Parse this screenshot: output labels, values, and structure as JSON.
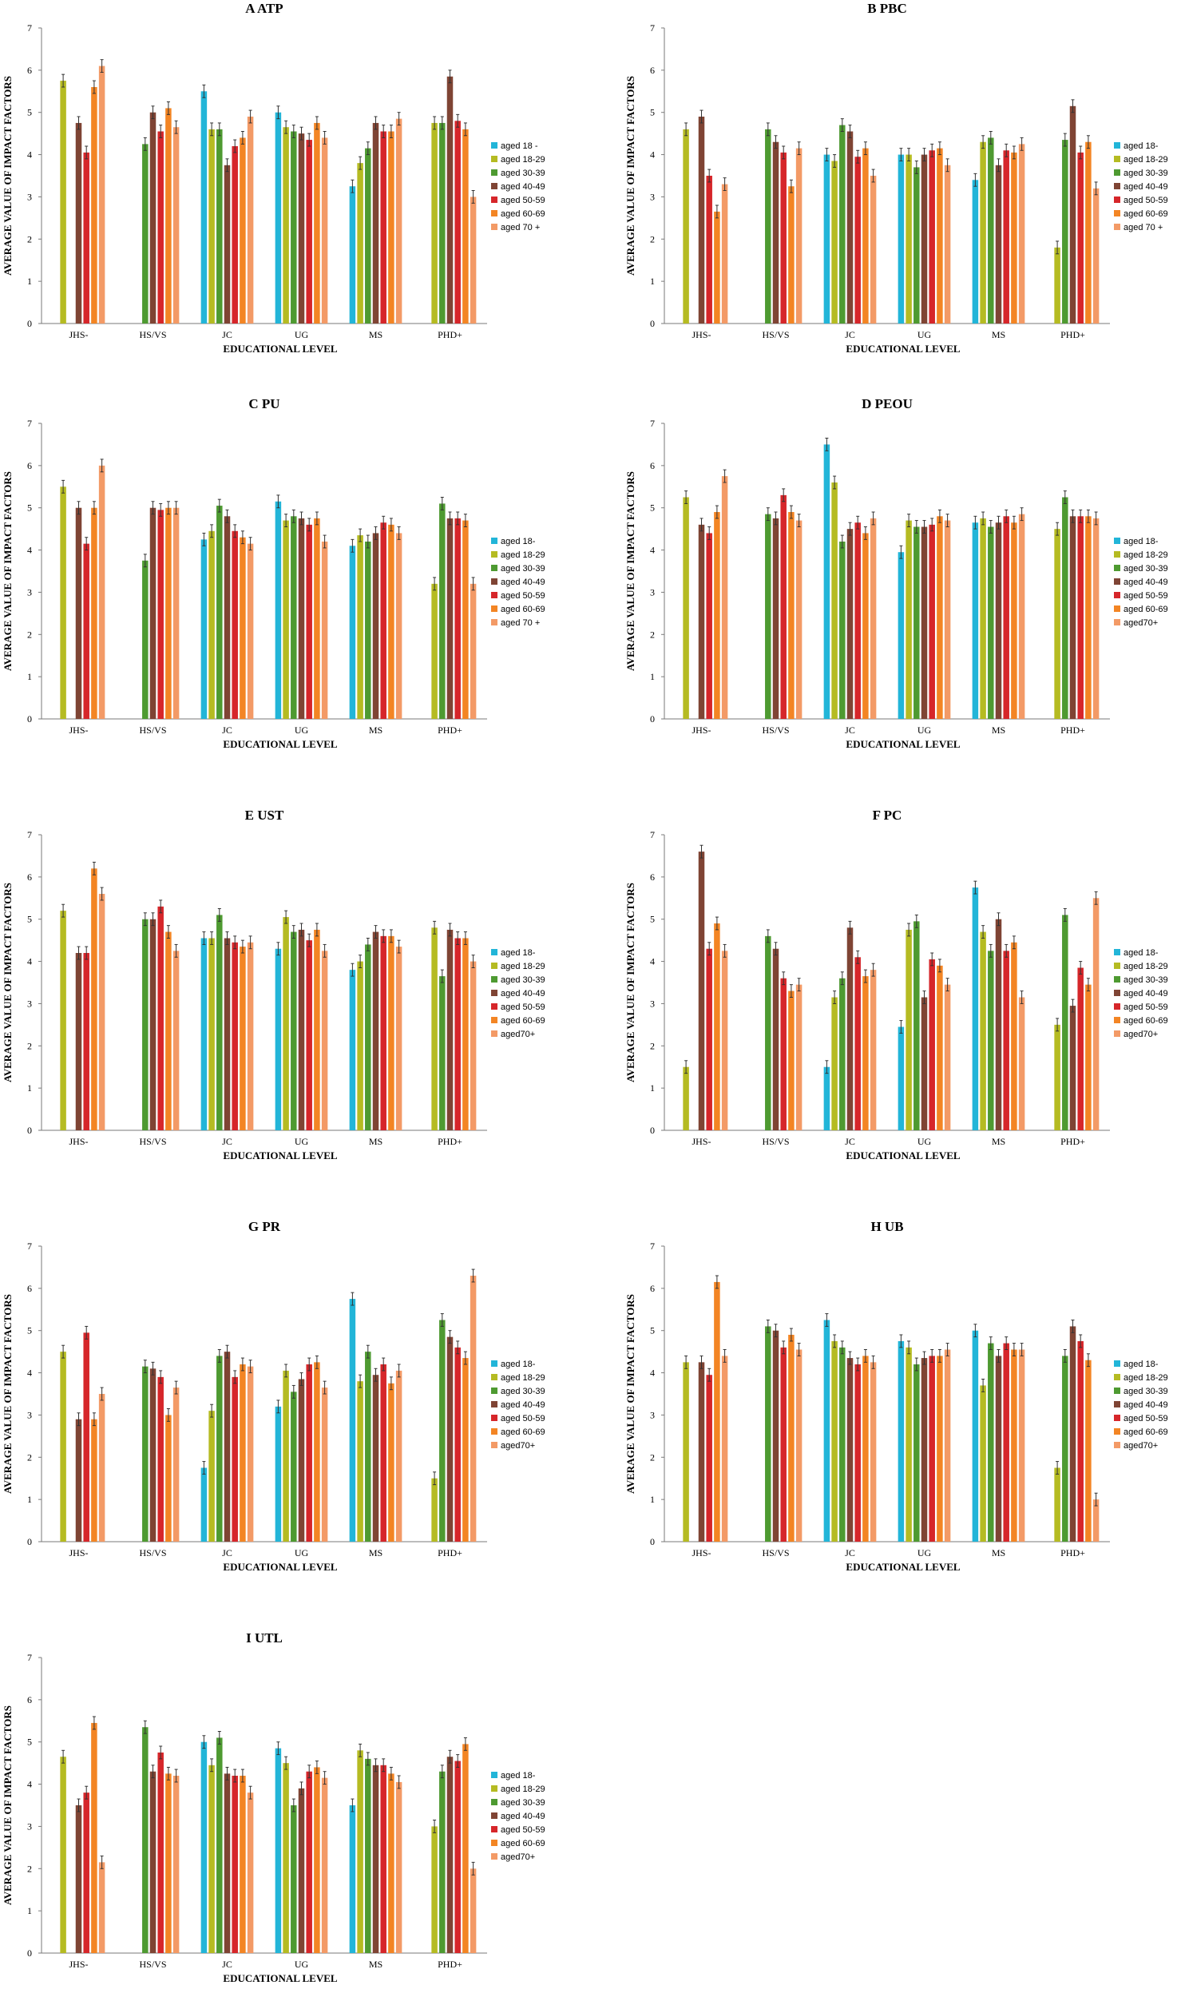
{
  "colors": [
    "#22b5d8",
    "#b5bb22",
    "#4e9a31",
    "#7f4434",
    "#d6262a",
    "#f38524",
    "#f39a66"
  ],
  "chart_data": [
    {
      "type": "bar",
      "title": "A ATP",
      "xlabel": "EDUCATIONAL LEVEL",
      "ylabel": "AVERAGE VALUE OF IMPACT FACTORS",
      "ylim": [
        0,
        7
      ],
      "yticks": [
        "0",
        "1",
        "2",
        "3",
        "4",
        "5",
        "6",
        "7"
      ],
      "categories": [
        "JHS-",
        "HS/VS",
        "JC",
        "UG",
        "MS",
        "PHD+"
      ],
      "legend": [
        "aged 18 -",
        "aged 18-29",
        "aged 30-39",
        "aged 40-49",
        "aged 50-59",
        "aged 60-69",
        "aged 70 +"
      ],
      "series": [
        {
          "name": "aged 18 -",
          "values": [
            null,
            null,
            5.5,
            5.0,
            3.25,
            null
          ]
        },
        {
          "name": "aged 18-29",
          "values": [
            5.75,
            null,
            4.6,
            4.65,
            3.8,
            4.75
          ]
        },
        {
          "name": "aged 30-39",
          "values": [
            null,
            4.25,
            4.6,
            4.55,
            4.15,
            4.75
          ]
        },
        {
          "name": "aged 40-49",
          "values": [
            4.75,
            5.0,
            3.75,
            4.5,
            4.75,
            5.85
          ]
        },
        {
          "name": "aged 50-59",
          "values": [
            4.05,
            4.55,
            4.2,
            4.35,
            4.55,
            4.8
          ]
        },
        {
          "name": "aged 60-69",
          "values": [
            5.6,
            5.1,
            4.4,
            4.75,
            4.55,
            4.6
          ]
        },
        {
          "name": "aged 70 +",
          "values": [
            6.1,
            4.65,
            4.9,
            4.4,
            4.85,
            3.0
          ]
        }
      ]
    },
    {
      "type": "bar",
      "title": "B PBC",
      "xlabel": "EDUCATIONAL LEVEL",
      "ylabel": "AVERAGE VALUE OF IMPACT FACTORS",
      "ylim": [
        0,
        7
      ],
      "yticks": [
        "0",
        "1",
        "2",
        "3",
        "4",
        "5",
        "6",
        "7"
      ],
      "categories": [
        "JHS-",
        "HS/VS",
        "JC",
        "UG",
        "MS",
        "PHD+"
      ],
      "legend": [
        "aged 18-",
        "aged 18-29",
        "aged 30-39",
        "aged 40-49",
        "aged 50-59",
        "aged 60-69",
        "aged 70 +"
      ],
      "series": [
        {
          "name": "aged 18-",
          "values": [
            null,
            null,
            4.0,
            4.0,
            3.4,
            null
          ]
        },
        {
          "name": "aged 18-29",
          "values": [
            4.6,
            null,
            3.85,
            4.0,
            4.3,
            1.8
          ]
        },
        {
          "name": "aged 30-39",
          "values": [
            null,
            4.6,
            4.7,
            3.7,
            4.4,
            4.35
          ]
        },
        {
          "name": "aged 40-49",
          "values": [
            4.9,
            4.3,
            4.55,
            4.0,
            3.75,
            5.15
          ]
        },
        {
          "name": "aged 50-59",
          "values": [
            3.5,
            4.05,
            3.95,
            4.1,
            4.1,
            4.05
          ]
        },
        {
          "name": "aged 60-69",
          "values": [
            2.65,
            3.25,
            4.15,
            4.15,
            4.05,
            4.3
          ]
        },
        {
          "name": "aged 70 +",
          "values": [
            3.3,
            4.15,
            3.5,
            3.75,
            4.25,
            3.2
          ]
        }
      ]
    },
    {
      "type": "bar",
      "title": "C PU",
      "xlabel": "EDUCATIONAL LEVEL",
      "ylabel": "AVERAGE VALUE OF IMPACT FACTORS",
      "ylim": [
        0,
        7
      ],
      "yticks": [
        "0",
        "1",
        "2",
        "3",
        "4",
        "5",
        "6",
        "7"
      ],
      "categories": [
        "JHS-",
        "HS/VS",
        "JC",
        "UG",
        "MS",
        "PHD+"
      ],
      "legend": [
        "aged 18-",
        "aged 18-29",
        "aged 30-39",
        "aged 40-49",
        "aged 50-59",
        "aged 60-69",
        "aged 70 +"
      ],
      "series": [
        {
          "name": "aged 18-",
          "values": [
            null,
            null,
            4.25,
            5.15,
            4.1,
            null
          ]
        },
        {
          "name": "aged 18-29",
          "values": [
            5.5,
            null,
            4.45,
            4.7,
            4.35,
            3.2
          ]
        },
        {
          "name": "aged 30-39",
          "values": [
            null,
            3.75,
            5.05,
            4.8,
            4.2,
            5.1
          ]
        },
        {
          "name": "aged 40-49",
          "values": [
            5.0,
            5.0,
            4.8,
            4.75,
            4.4,
            4.75
          ]
        },
        {
          "name": "aged 50-59",
          "values": [
            4.15,
            4.95,
            4.45,
            4.6,
            4.65,
            4.75
          ]
        },
        {
          "name": "aged 60-69",
          "values": [
            5.0,
            5.0,
            4.3,
            4.75,
            4.6,
            4.7
          ]
        },
        {
          "name": "aged 70 +",
          "values": [
            6.0,
            5.0,
            4.15,
            4.2,
            4.4,
            3.2
          ]
        }
      ]
    },
    {
      "type": "bar",
      "title": "D PEOU",
      "xlabel": "EDUCATIONAL LEVEL",
      "ylabel": "AVERAGE VALUE OF IMPACT FACTORS",
      "ylim": [
        0,
        7
      ],
      "yticks": [
        "0",
        "1",
        "2",
        "3",
        "4",
        "5",
        "6",
        "7"
      ],
      "categories": [
        "JHS-",
        "HS/VS",
        "JC",
        "UG",
        "MS",
        "PHD+"
      ],
      "legend": [
        "aged 18-",
        "aged 18-29",
        "aged 30-39",
        "aged 40-49",
        "aged 50-59",
        "aged 60-69",
        "aged70+"
      ],
      "series": [
        {
          "name": "aged 18-",
          "values": [
            null,
            null,
            6.5,
            3.95,
            4.65,
            null
          ]
        },
        {
          "name": "aged 18-29",
          "values": [
            5.25,
            null,
            5.6,
            4.7,
            4.75,
            4.5
          ]
        },
        {
          "name": "aged 30-39",
          "values": [
            null,
            4.85,
            4.2,
            4.55,
            4.55,
            5.25
          ]
        },
        {
          "name": "aged 40-49",
          "values": [
            4.6,
            4.75,
            4.5,
            4.55,
            4.65,
            4.8
          ]
        },
        {
          "name": "aged 50-59",
          "values": [
            4.4,
            5.3,
            4.65,
            4.6,
            4.8,
            4.8
          ]
        },
        {
          "name": "aged 60-69",
          "values": [
            4.9,
            4.9,
            4.4,
            4.8,
            4.65,
            4.8
          ]
        },
        {
          "name": "aged70+",
          "values": [
            5.75,
            4.7,
            4.75,
            4.7,
            4.85,
            4.75
          ]
        }
      ]
    },
    {
      "type": "bar",
      "title": "E UST",
      "xlabel": "EDUCATIONAL LEVEL",
      "ylabel": "AVERAGE VALUE OF IMPACT FACTORS",
      "ylim": [
        0,
        7
      ],
      "yticks": [
        "0",
        "1",
        "2",
        "3",
        "4",
        "5",
        "6",
        "7"
      ],
      "categories": [
        "JHS-",
        "HS/VS",
        "JC",
        "UG",
        "MS",
        "PHD+"
      ],
      "legend": [
        "aged 18-",
        "aged 18-29",
        "aged 30-39",
        "aged 40-49",
        "aged 50-59",
        "aged 60-69",
        "aged70+"
      ],
      "series": [
        {
          "name": "aged 18-",
          "values": [
            null,
            null,
            4.55,
            4.3,
            3.8,
            null
          ]
        },
        {
          "name": "aged 18-29",
          "values": [
            5.2,
            null,
            4.55,
            5.05,
            4.0,
            4.8
          ]
        },
        {
          "name": "aged 30-39",
          "values": [
            null,
            5.0,
            5.1,
            4.7,
            4.4,
            3.65
          ]
        },
        {
          "name": "aged 40-49",
          "values": [
            4.2,
            5.0,
            4.55,
            4.75,
            4.7,
            4.75
          ]
        },
        {
          "name": "aged 50-59",
          "values": [
            4.2,
            5.3,
            4.45,
            4.5,
            4.6,
            4.55
          ]
        },
        {
          "name": "aged 60-69",
          "values": [
            6.2,
            4.7,
            4.35,
            4.75,
            4.6,
            4.55
          ]
        },
        {
          "name": "aged70+",
          "values": [
            5.6,
            4.25,
            4.45,
            4.25,
            4.35,
            4.0
          ]
        }
      ]
    },
    {
      "type": "bar",
      "title": "F PC",
      "xlabel": "EDUCATIONAL LEVEL",
      "ylabel": "AVERAGE VALUE OF IMPACT FACTORS",
      "ylim": [
        0,
        7
      ],
      "yticks": [
        "0",
        "1",
        "2",
        "3",
        "4",
        "5",
        "6",
        "7"
      ],
      "categories": [
        "JHS-",
        "HS/VS",
        "JC",
        "UG",
        "MS",
        "PHD+"
      ],
      "legend": [
        "aged 18-",
        "aged 18-29",
        "aged 30-39",
        "aged 40-49",
        "aged 50-59",
        "aged 60-69",
        "aged70+"
      ],
      "series": [
        {
          "name": "aged 18-",
          "values": [
            null,
            null,
            1.5,
            2.45,
            5.75,
            null
          ]
        },
        {
          "name": "aged 18-29",
          "values": [
            1.5,
            null,
            3.15,
            4.75,
            4.7,
            2.5
          ]
        },
        {
          "name": "aged 30-39",
          "values": [
            null,
            4.6,
            3.6,
            4.95,
            4.25,
            5.1
          ]
        },
        {
          "name": "aged 40-49",
          "values": [
            6.6,
            4.3,
            4.8,
            3.15,
            5.0,
            2.95
          ]
        },
        {
          "name": "aged 50-59",
          "values": [
            4.3,
            3.6,
            4.1,
            4.05,
            4.25,
            3.85
          ]
        },
        {
          "name": "aged 60-69",
          "values": [
            4.9,
            3.3,
            3.65,
            3.9,
            4.45,
            3.45
          ]
        },
        {
          "name": "aged70+",
          "values": [
            4.25,
            3.45,
            3.8,
            3.45,
            3.15,
            5.5
          ]
        }
      ]
    },
    {
      "type": "bar",
      "title": "G PR",
      "xlabel": "EDUCATIONAL LEVEL",
      "ylabel": "AVERAGE VALUE OF IMPACT FACTORS",
      "ylim": [
        0,
        7
      ],
      "yticks": [
        "0",
        "1",
        "2",
        "3",
        "4",
        "5",
        "6",
        "7"
      ],
      "categories": [
        "JHS-",
        "HS/VS",
        "JC",
        "UG",
        "MS",
        "PHD+"
      ],
      "legend": [
        "aged 18-",
        "aged 18-29",
        "aged 30-39",
        "aged 40-49",
        "aged 50-59",
        "aged 60-69",
        "aged70+"
      ],
      "series": [
        {
          "name": "aged 18-",
          "values": [
            null,
            null,
            1.75,
            3.2,
            5.75,
            null
          ]
        },
        {
          "name": "aged 18-29",
          "values": [
            4.5,
            null,
            3.1,
            4.05,
            3.8,
            1.5
          ]
        },
        {
          "name": "aged 30-39",
          "values": [
            null,
            4.15,
            4.4,
            3.55,
            4.5,
            5.25
          ]
        },
        {
          "name": "aged 40-49",
          "values": [
            2.9,
            4.1,
            4.5,
            3.85,
            3.95,
            4.85
          ]
        },
        {
          "name": "aged 50-59",
          "values": [
            4.95,
            3.9,
            3.9,
            4.2,
            4.2,
            4.6
          ]
        },
        {
          "name": "aged 60-69",
          "values": [
            2.9,
            3.0,
            4.2,
            4.25,
            3.75,
            4.35
          ]
        },
        {
          "name": "aged70+",
          "values": [
            3.5,
            3.65,
            4.15,
            3.65,
            4.05,
            6.3
          ]
        }
      ]
    },
    {
      "type": "bar",
      "title": "H UB",
      "xlabel": "EDUCATIONAL LEVEL",
      "ylabel": "AVERAGE VALUE OF IMPACT FACTORS",
      "ylim": [
        0,
        7
      ],
      "yticks": [
        "0",
        "1",
        "2",
        "3",
        "4",
        "5",
        "6",
        "7"
      ],
      "categories": [
        "JHS-",
        "HS/VS",
        "JC",
        "UG",
        "MS",
        "PHD+"
      ],
      "legend": [
        "aged 18-",
        "aged 18-29",
        "aged 30-39",
        "aged 40-49",
        "aged 50-59",
        "aged 60-69",
        "aged70+"
      ],
      "series": [
        {
          "name": "aged 18-",
          "values": [
            null,
            null,
            5.25,
            4.75,
            5.0,
            null
          ]
        },
        {
          "name": "aged 18-29",
          "values": [
            4.25,
            null,
            4.75,
            4.6,
            3.7,
            1.75
          ]
        },
        {
          "name": "aged 30-39",
          "values": [
            null,
            5.1,
            4.6,
            4.2,
            4.7,
            4.4
          ]
        },
        {
          "name": "aged 40-49",
          "values": [
            4.25,
            5.0,
            4.35,
            4.35,
            4.4,
            5.1
          ]
        },
        {
          "name": "aged 50-59",
          "values": [
            3.95,
            4.6,
            4.2,
            4.4,
            4.7,
            4.75
          ]
        },
        {
          "name": "aged 60-69",
          "values": [
            6.15,
            4.9,
            4.4,
            4.4,
            4.55,
            4.3
          ]
        },
        {
          "name": "aged70+",
          "values": [
            4.4,
            4.55,
            4.25,
            4.55,
            4.55,
            1.0
          ]
        }
      ]
    },
    {
      "type": "bar",
      "title": "I UTL",
      "xlabel": "EDUCATIONAL LEVEL",
      "ylabel": "AVERAGE VALUE OF IMPACT FACTORS",
      "ylim": [
        0,
        7
      ],
      "yticks": [
        "0",
        "1",
        "2",
        "3",
        "4",
        "5",
        "6",
        "7"
      ],
      "categories": [
        "JHS-",
        "HS/VS",
        "JC",
        "UG",
        "MS",
        "PHD+"
      ],
      "legend": [
        "aged 18-",
        "aged 18-29",
        "aged 30-39",
        "aged 40-49",
        "aged 50-59",
        "aged 60-69",
        "aged70+"
      ],
      "series": [
        {
          "name": "aged 18-",
          "values": [
            null,
            null,
            5.0,
            4.85,
            3.5,
            null
          ]
        },
        {
          "name": "aged 18-29",
          "values": [
            4.65,
            null,
            4.45,
            4.5,
            4.8,
            3.0
          ]
        },
        {
          "name": "aged 30-39",
          "values": [
            null,
            5.35,
            5.1,
            3.5,
            4.6,
            4.3
          ]
        },
        {
          "name": "aged 40-49",
          "values": [
            3.5,
            4.3,
            4.25,
            3.9,
            4.45,
            4.65
          ]
        },
        {
          "name": "aged 50-59",
          "values": [
            3.8,
            4.75,
            4.2,
            4.3,
            4.45,
            4.55
          ]
        },
        {
          "name": "aged 60-69",
          "values": [
            5.45,
            4.25,
            4.2,
            4.4,
            4.25,
            4.95
          ]
        },
        {
          "name": "aged70+",
          "values": [
            2.15,
            4.2,
            3.8,
            4.15,
            4.05,
            2.0
          ]
        }
      ]
    }
  ]
}
